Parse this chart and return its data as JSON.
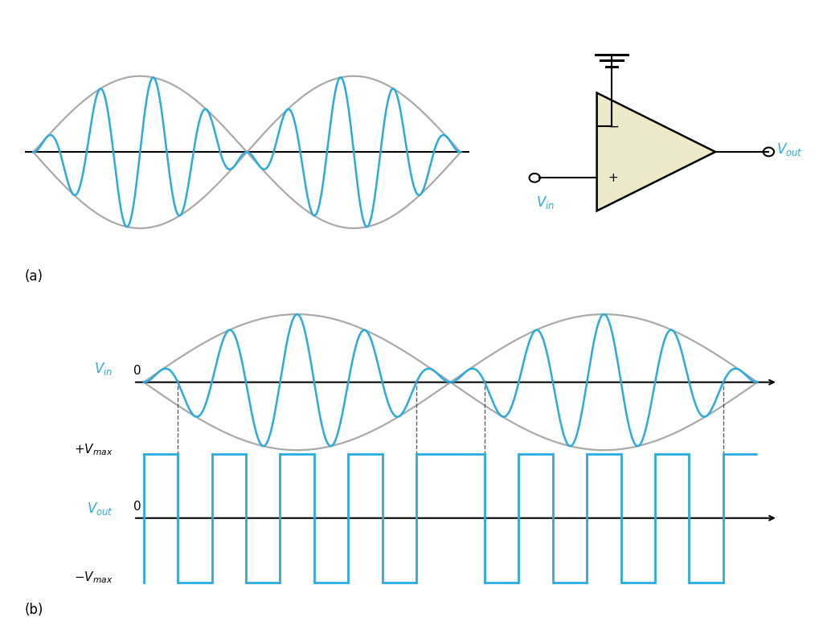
{
  "blue_color": "#29ABE2",
  "gray_color": "#AAAAAA",
  "black_color": "#000000",
  "dashed_color": "#444444",
  "opamp_fill": "#EDE8C8",
  "bg_color": "#FFFFFF",
  "signal_lw": 1.8,
  "envelope_lw": 1.6,
  "square_lw": 2.0,
  "axis_lw": 1.5
}
